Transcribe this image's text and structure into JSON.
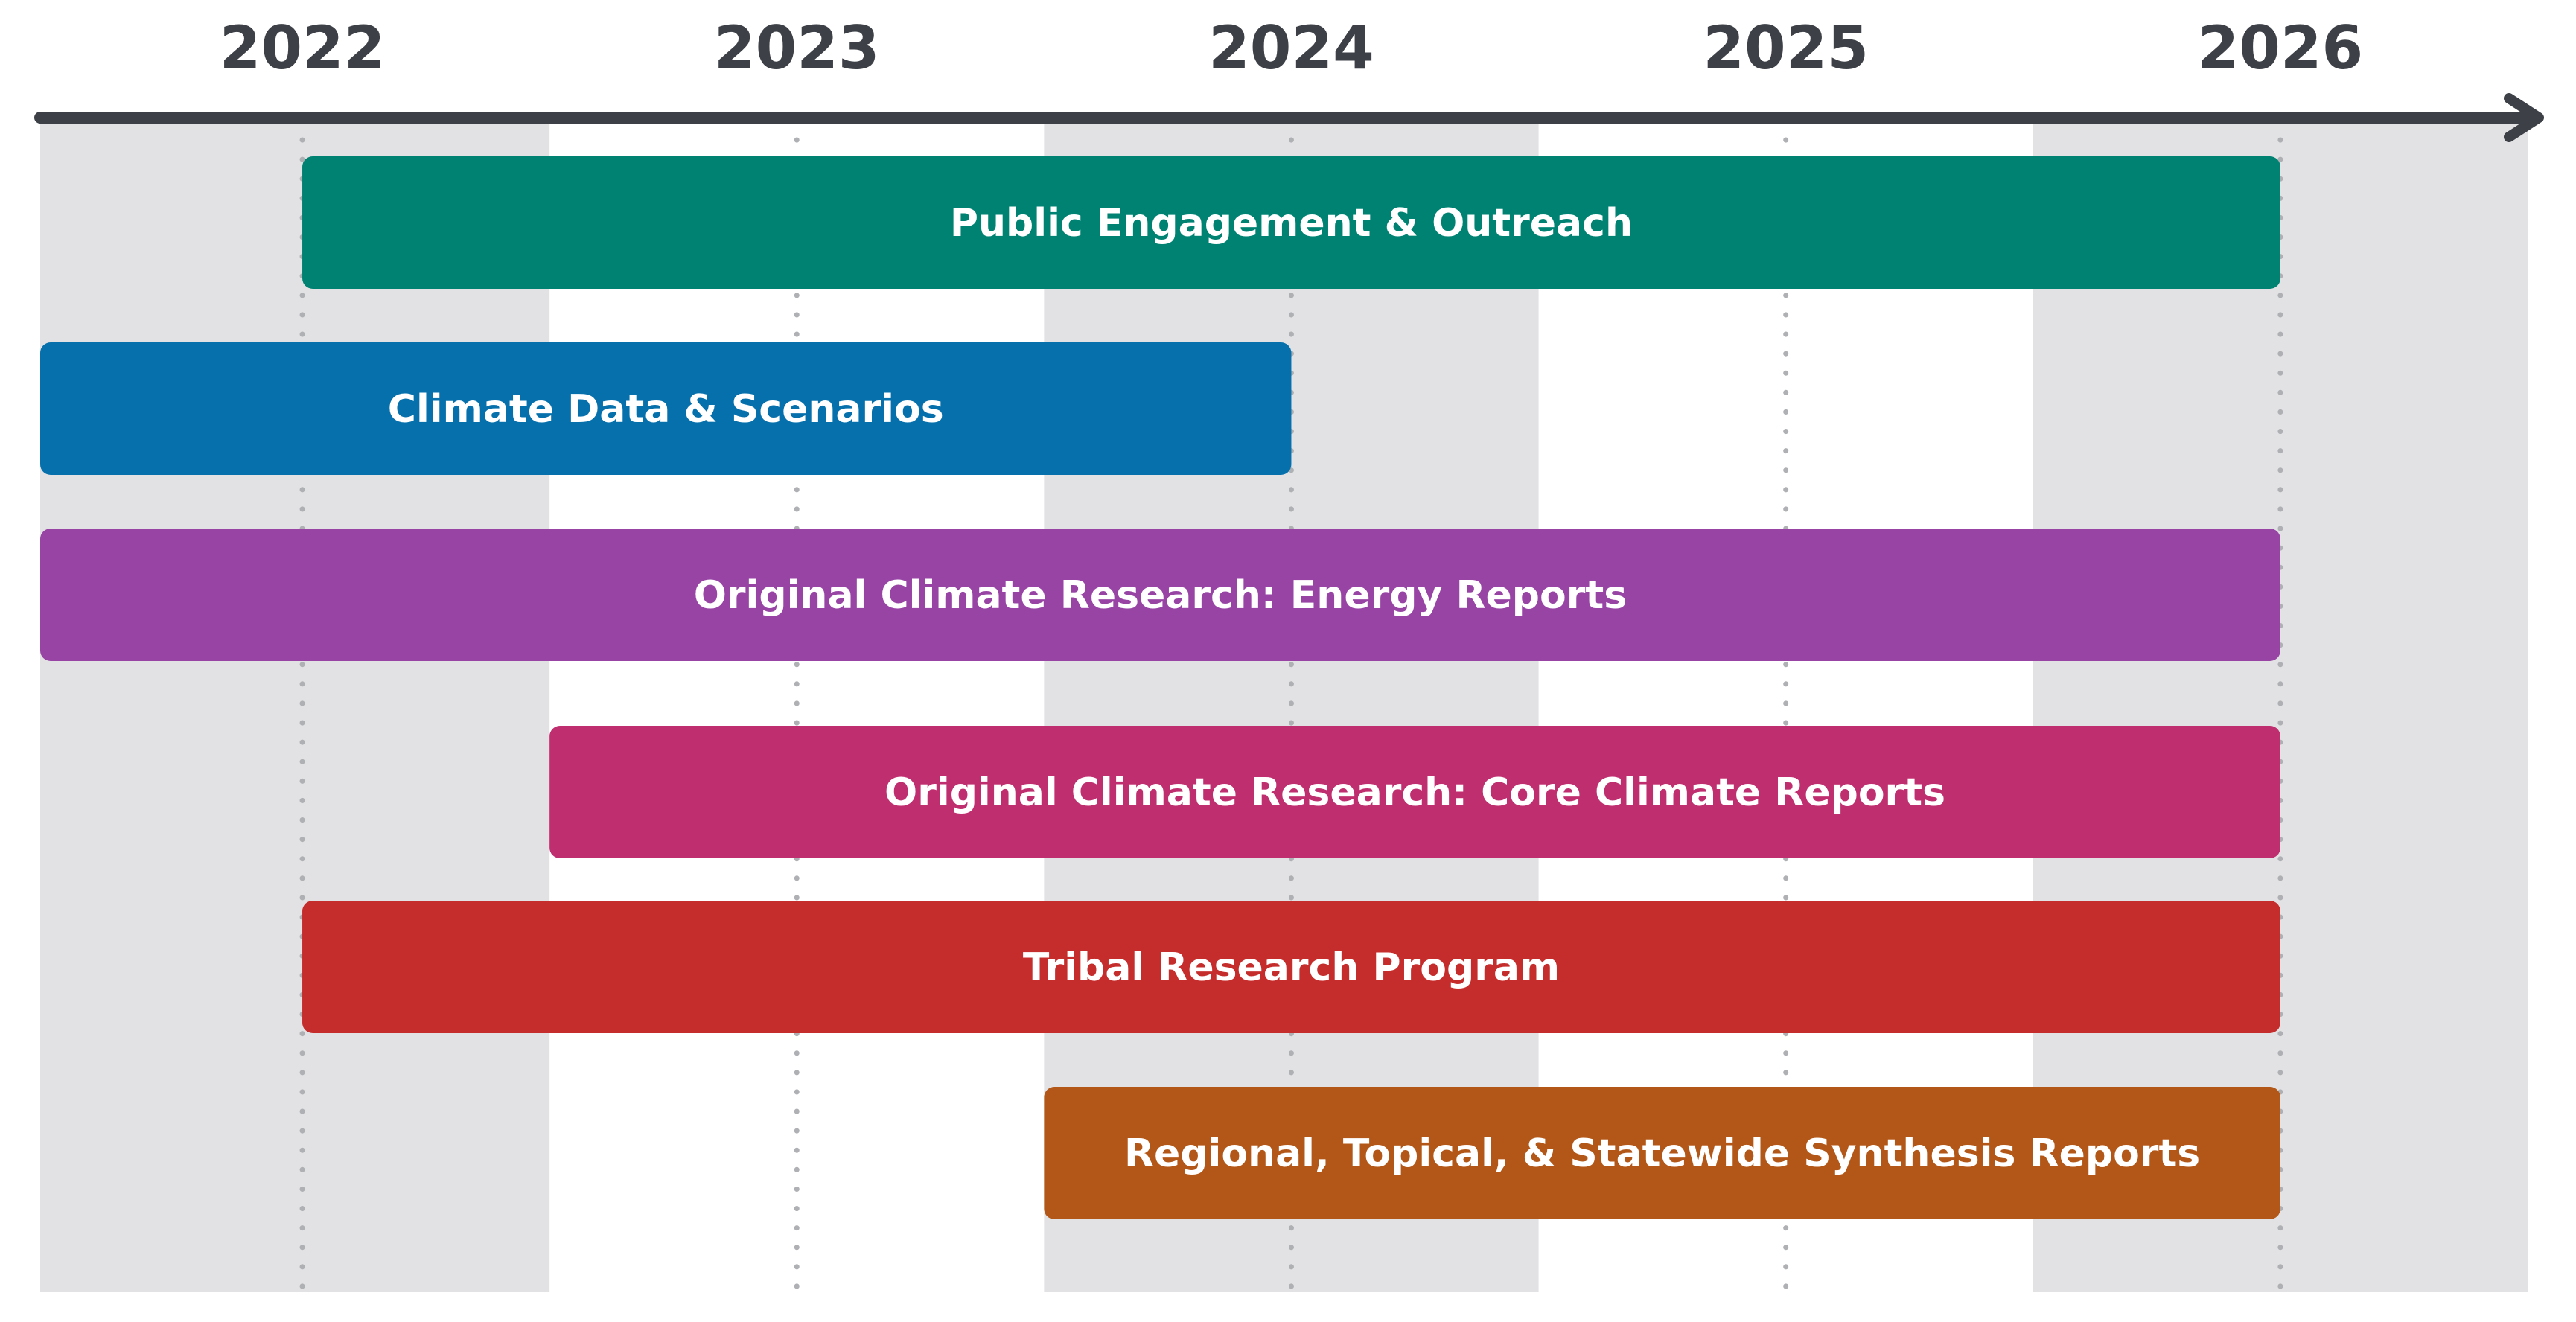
{
  "chart_data": {
    "type": "gantt",
    "x_axis": {
      "ticks": [
        "2022",
        "2023",
        "2024",
        "2025",
        "2026"
      ],
      "range": [
        2021.47,
        2026.5
      ]
    },
    "tasks": [
      {
        "label": "Public Engagement & Outreach",
        "start": 2022.0,
        "end": 2026.0,
        "color": "#008272"
      },
      {
        "label": "Climate Data & Scenarios",
        "start": 2021.47,
        "end": 2024.0,
        "color": "#0670ac"
      },
      {
        "label": "Original Climate Research: Energy Reports",
        "start": 2021.47,
        "end": 2026.0,
        "color": "#9744a5"
      },
      {
        "label": "Original Climate Research: Core Climate Reports",
        "start": 2022.5,
        "end": 2026.0,
        "color": "#bf2e6e"
      },
      {
        "label": "Tribal Research Program",
        "start": 2022.0,
        "end": 2026.0,
        "color": "#c52d2c"
      },
      {
        "label": "Regional, Topical, & Statewide Synthesis Reports",
        "start": 2023.5,
        "end": 2026.0,
        "color": "#b25717"
      }
    ],
    "colors": {
      "axis": "#3d4147",
      "band": "#e2e2e4",
      "gridline": "#aeb0b3"
    },
    "grid": true,
    "legend": "none"
  }
}
